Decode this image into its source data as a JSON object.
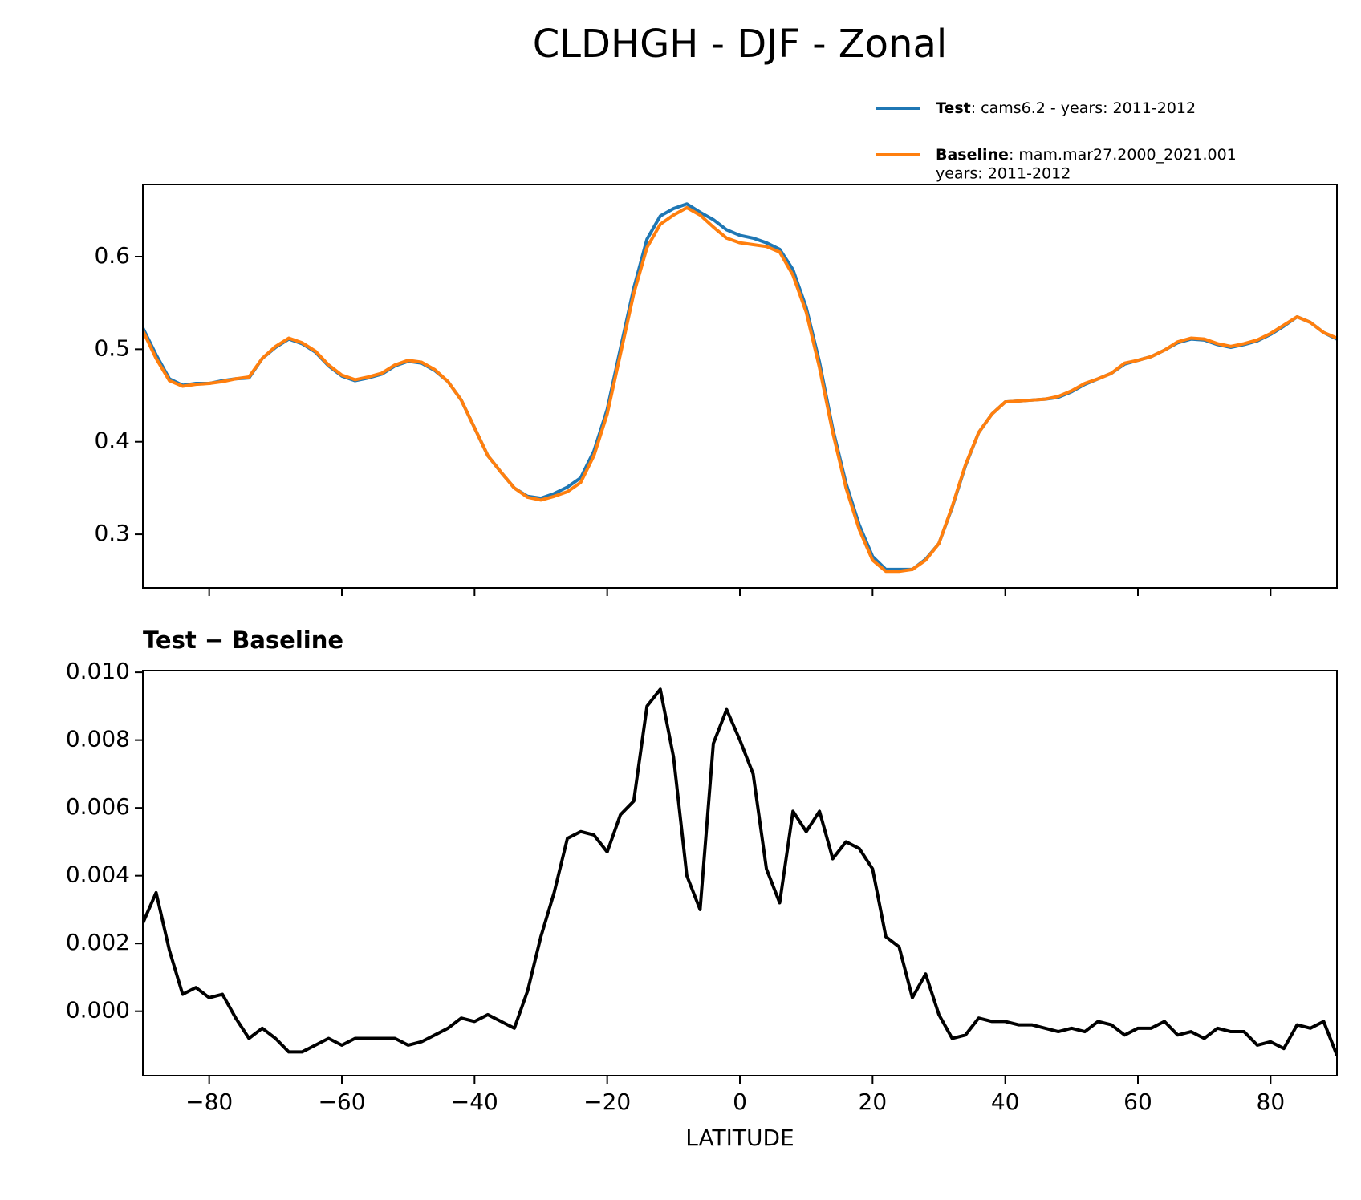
{
  "chart_data": [
    {
      "type": "line",
      "title": "CLDHGH - DJF - Zonal",
      "x": [
        -90,
        -88,
        -86,
        -84,
        -82,
        -80,
        -78,
        -76,
        -74,
        -72,
        -70,
        -68,
        -66,
        -64,
        -62,
        -60,
        -58,
        -56,
        -54,
        -52,
        -50,
        -48,
        -46,
        -44,
        -42,
        -40,
        -38,
        -36,
        -34,
        -32,
        -30,
        -28,
        -26,
        -24,
        -22,
        -20,
        -18,
        -16,
        -14,
        -12,
        -10,
        -8,
        -6,
        -4,
        -2,
        0,
        2,
        4,
        6,
        8,
        10,
        12,
        14,
        16,
        18,
        20,
        22,
        24,
        26,
        28,
        30,
        32,
        34,
        36,
        38,
        40,
        42,
        44,
        46,
        48,
        50,
        52,
        54,
        56,
        58,
        60,
        62,
        64,
        66,
        68,
        70,
        72,
        74,
        76,
        78,
        80,
        82,
        84,
        86,
        88,
        90
      ],
      "series": [
        {
          "name": "Test",
          "description": [
            ": cams6.2 - years: 2011-2012"
          ],
          "color": "#1f77b4",
          "values": [
            0.523,
            0.494,
            0.468,
            0.461,
            0.463,
            0.463,
            0.466,
            0.468,
            0.469,
            0.49,
            0.502,
            0.511,
            0.506,
            0.497,
            0.482,
            0.471,
            0.466,
            0.469,
            0.473,
            0.482,
            0.487,
            0.485,
            0.477,
            0.465,
            0.445,
            0.415,
            0.385,
            0.367,
            0.35,
            0.341,
            0.339,
            0.344,
            0.351,
            0.361,
            0.39,
            0.435,
            0.501,
            0.566,
            0.619,
            0.644,
            0.652,
            0.657,
            0.648,
            0.64,
            0.629,
            0.623,
            0.62,
            0.615,
            0.608,
            0.586,
            0.545,
            0.486,
            0.414,
            0.355,
            0.31,
            0.276,
            0.262,
            0.262,
            0.262,
            0.273,
            0.29,
            0.329,
            0.374,
            0.41,
            0.43,
            0.443,
            0.444,
            0.445,
            0.446,
            0.448,
            0.454,
            0.462,
            0.468,
            0.474,
            0.484,
            0.488,
            0.492,
            0.499,
            0.507,
            0.511,
            0.51,
            0.505,
            0.502,
            0.505,
            0.509,
            0.516,
            0.525,
            0.535,
            0.529,
            0.518,
            0.511
          ]
        },
        {
          "name": "Baseline",
          "description": [
            ": mam.mar27.2000_2021.001",
            "years: 2011-2012"
          ],
          "color": "#ff7f0e",
          "values": [
            0.52,
            0.49,
            0.466,
            0.46,
            0.462,
            0.463,
            0.465,
            0.468,
            0.47,
            0.49,
            0.503,
            0.512,
            0.507,
            0.498,
            0.483,
            0.472,
            0.467,
            0.47,
            0.474,
            0.483,
            0.488,
            0.486,
            0.478,
            0.465,
            0.445,
            0.415,
            0.385,
            0.367,
            0.35,
            0.34,
            0.337,
            0.341,
            0.346,
            0.356,
            0.385,
            0.43,
            0.495,
            0.56,
            0.61,
            0.635,
            0.645,
            0.653,
            0.645,
            0.632,
            0.62,
            0.615,
            0.613,
            0.611,
            0.605,
            0.58,
            0.54,
            0.48,
            0.41,
            0.35,
            0.305,
            0.272,
            0.26,
            0.26,
            0.262,
            0.272,
            0.29,
            0.33,
            0.375,
            0.41,
            0.43,
            0.443,
            0.444,
            0.445,
            0.446,
            0.449,
            0.455,
            0.463,
            0.468,
            0.474,
            0.485,
            0.488,
            0.492,
            0.499,
            0.508,
            0.512,
            0.511,
            0.506,
            0.503,
            0.506,
            0.51,
            0.517,
            0.526,
            0.535,
            0.529,
            0.518,
            0.512
          ]
        }
      ],
      "xlim": [
        -90,
        90
      ],
      "xticks": [
        {
          "value": -80,
          "label": "−80"
        },
        {
          "value": -60,
          "label": "−60"
        },
        {
          "value": -40,
          "label": "−40"
        },
        {
          "value": -20,
          "label": "−20"
        },
        0,
        20,
        40,
        60,
        80
      ],
      "ylim": [
        0.242,
        0.678
      ],
      "yticks": [
        0.3,
        0.4,
        0.5,
        0.6
      ],
      "legend": "upper right"
    },
    {
      "type": "line",
      "title": "Test − Baseline",
      "xlabel": "LATITUDE",
      "x": [
        -90,
        -88,
        -86,
        -84,
        -82,
        -80,
        -78,
        -76,
        -74,
        -72,
        -70,
        -68,
        -66,
        -64,
        -62,
        -60,
        -58,
        -56,
        -54,
        -52,
        -50,
        -48,
        -46,
        -44,
        -42,
        -40,
        -38,
        -36,
        -34,
        -32,
        -30,
        -28,
        -26,
        -24,
        -22,
        -20,
        -18,
        -16,
        -14,
        -12,
        -10,
        -8,
        -6,
        -4,
        -2,
        0,
        2,
        4,
        6,
        8,
        10,
        12,
        14,
        16,
        18,
        20,
        22,
        24,
        26,
        28,
        30,
        32,
        34,
        36,
        38,
        40,
        42,
        44,
        46,
        48,
        50,
        52,
        54,
        56,
        58,
        60,
        62,
        64,
        66,
        68,
        70,
        72,
        74,
        76,
        78,
        80,
        82,
        84,
        86,
        88,
        90
      ],
      "series": [
        {
          "color": "#000000",
          "values": [
            0.0026,
            0.0035,
            0.0018,
            0.0005,
            0.0007,
            0.0004,
            0.0005,
            -0.0002,
            -0.0008,
            -0.0005,
            -0.0008,
            -0.0012,
            -0.0012,
            -0.001,
            -0.0008,
            -0.001,
            -0.0008,
            -0.0008,
            -0.0008,
            -0.0008,
            -0.001,
            -0.0009,
            -0.0007,
            -0.0005,
            -0.0002,
            -0.0003,
            -0.0001,
            -0.0003,
            -0.0005,
            0.0006,
            0.0022,
            0.0035,
            0.0051,
            0.0053,
            0.0052,
            0.0047,
            0.0058,
            0.0062,
            0.009,
            0.0095,
            0.0075,
            0.004,
            0.003,
            0.0079,
            0.0089,
            0.008,
            0.007,
            0.0042,
            0.0032,
            0.0059,
            0.0053,
            0.0059,
            0.0045,
            0.005,
            0.0048,
            0.0042,
            0.0022,
            0.0019,
            0.0004,
            0.0011,
            -0.0001,
            -0.0008,
            -0.0007,
            -0.0002,
            -0.0003,
            -0.0003,
            -0.0004,
            -0.0004,
            -0.0005,
            -0.0006,
            -0.0005,
            -0.0006,
            -0.0003,
            -0.0004,
            -0.0007,
            -0.0005,
            -0.0005,
            -0.0003,
            -0.0007,
            -0.0006,
            -0.0008,
            -0.0005,
            -0.0006,
            -0.0006,
            -0.001,
            -0.0009,
            -0.0011,
            -0.0004,
            -0.0005,
            -0.0003,
            -0.0013
          ]
        }
      ],
      "xlim": [
        -90,
        90
      ],
      "xticks": [
        {
          "value": -80,
          "label": "−80"
        },
        {
          "value": -60,
          "label": "−60"
        },
        {
          "value": -40,
          "label": "−40"
        },
        {
          "value": -20,
          "label": "−20"
        },
        0,
        20,
        40,
        60,
        80
      ],
      "ylim": [
        -0.0019,
        0.01005
      ],
      "yticks": [
        {
          "value": 0,
          "label": "0.000"
        },
        0.002,
        0.004,
        0.006,
        0.008,
        {
          "value": 0.01,
          "label": "0.010"
        }
      ]
    }
  ]
}
